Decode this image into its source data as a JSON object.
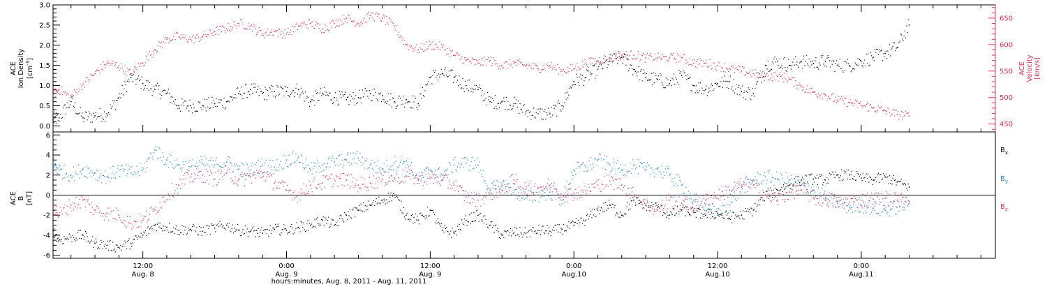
{
  "colors": {
    "black": "#000000",
    "density": "#000000",
    "velocity": "#e0305a",
    "bx": "#000000",
    "by": "#1f86d8",
    "bz": "#e0305a"
  },
  "panels": {
    "top": {
      "left_label": {
        "line1": "ACE",
        "line2": "Ion Density",
        "unit_base": "[cm",
        "unit_exp": "-3",
        "unit_end": "]"
      },
      "right_label": {
        "line1": "ACE",
        "line2": "Velocity",
        "line3": "[km/s]"
      }
    },
    "bottom": {
      "left_label": {
        "line1": "ACE",
        "sym": "B",
        "unit": "[nT]"
      },
      "legend": [
        {
          "base": "B",
          "sub": "x",
          "color": "#000000"
        },
        {
          "base": "B",
          "sub": "y",
          "color": "#1f86d8"
        },
        {
          "base": "B",
          "sub": "z",
          "color": "#e0305a"
        }
      ]
    }
  },
  "time_axis": {
    "title": "hours:minutes, Aug.  8, 2011 - Aug. 11, 2011",
    "labels": [
      {
        "t": 12,
        "time": "12:00",
        "date": "Aug. 8"
      },
      {
        "t": 24,
        "time": "0:00",
        "date": "Aug. 9"
      },
      {
        "t": 36,
        "time": "12:00",
        "date": "Aug. 9"
      },
      {
        "t": 48,
        "time": "0:00",
        "date": "Aug.10"
      },
      {
        "t": 60,
        "time": "12:00",
        "date": "Aug.10"
      },
      {
        "t": 72,
        "time": "0:00",
        "date": "Aug.11"
      }
    ]
  },
  "chart_data": [
    {
      "type": "scatter",
      "xlabel": "hours:minutes, Aug.  8, 2011 - Aug. 11, 2011",
      "ylabel": "ACE Ion Density [cm-3]",
      "ylabel_right": "ACE Velocity [km/s]",
      "xlim": [
        4.5,
        83.2
      ],
      "ylim": [
        -0.15,
        3.0
      ],
      "ylim_right": [
        435,
        675
      ],
      "yticks": [
        0.0,
        0.5,
        1.0,
        1.5,
        2.0,
        2.5,
        3.0
      ],
      "yticks_right": [
        450,
        500,
        550,
        600,
        650
      ],
      "grid": false,
      "series": [
        {
          "name": "Ion Density",
          "axis": "left",
          "color": "#000000",
          "x": [
            4.5,
            5,
            6,
            7,
            8,
            9,
            10,
            11,
            12,
            13,
            14,
            15,
            16,
            17,
            18,
            19,
            20,
            21,
            22,
            23,
            24,
            25,
            26,
            27,
            28,
            29,
            30,
            31,
            32,
            33,
            34,
            35,
            36,
            37,
            38,
            39,
            40,
            41,
            42,
            43,
            44,
            45,
            46,
            47,
            48,
            49,
            50,
            51,
            52,
            53,
            54,
            55,
            56,
            57,
            58,
            59,
            60,
            61,
            62,
            63,
            64,
            65,
            66,
            67,
            68,
            69,
            70,
            71,
            72,
            73,
            74,
            75,
            76
          ],
          "y": [
            0.15,
            0.2,
            0.6,
            0.2,
            0.25,
            0.3,
            0.7,
            1.2,
            1.05,
            0.9,
            0.8,
            0.5,
            0.5,
            0.5,
            0.55,
            0.6,
            0.8,
            0.9,
            0.8,
            0.85,
            0.85,
            0.9,
            0.6,
            0.8,
            0.7,
            0.65,
            0.7,
            0.8,
            0.75,
            0.6,
            0.65,
            0.55,
            1.2,
            1.3,
            1.2,
            1.0,
            0.9,
            0.6,
            0.6,
            0.55,
            0.35,
            0.3,
            0.3,
            0.5,
            1.1,
            1.2,
            1.4,
            1.6,
            1.7,
            1.4,
            1.2,
            1.15,
            1.05,
            1.25,
            1.0,
            0.9,
            1.05,
            1.1,
            0.85,
            0.8,
            1.5,
            1.6,
            1.5,
            1.6,
            1.55,
            1.6,
            1.5,
            1.5,
            1.6,
            1.7,
            1.8,
            1.95,
            2.5
          ]
        },
        {
          "name": "Velocity",
          "axis": "right",
          "color": "#e0305a",
          "x": [
            4.5,
            5,
            6,
            7,
            8,
            9,
            10,
            11,
            12,
            13,
            14,
            15,
            16,
            17,
            18,
            19,
            20,
            21,
            22,
            23,
            24,
            25,
            26,
            27,
            28,
            29,
            30,
            31,
            32,
            33,
            34,
            35,
            36,
            37,
            38,
            39,
            40,
            41,
            42,
            43,
            44,
            45,
            46,
            47,
            48,
            49,
            50,
            51,
            52,
            53,
            54,
            55,
            56,
            57,
            58,
            59,
            60,
            61,
            62,
            63,
            64,
            65,
            66,
            67,
            68,
            69,
            70,
            71,
            72,
            73,
            74,
            75,
            76
          ],
          "y": [
            505,
            515,
            500,
            525,
            545,
            565,
            560,
            545,
            565,
            590,
            610,
            615,
            610,
            615,
            625,
            630,
            640,
            635,
            620,
            625,
            620,
            635,
            640,
            630,
            640,
            650,
            640,
            655,
            650,
            635,
            600,
            590,
            600,
            595,
            580,
            570,
            565,
            570,
            560,
            565,
            560,
            555,
            560,
            550,
            555,
            565,
            570,
            575,
            580,
            580,
            575,
            575,
            575,
            575,
            565,
            565,
            560,
            555,
            550,
            545,
            540,
            540,
            535,
            520,
            510,
            505,
            495,
            490,
            485,
            480,
            475,
            468,
            465
          ]
        }
      ]
    },
    {
      "type": "scatter",
      "ylabel": "ACE B [nT]",
      "xlim": [
        4.5,
        83.2
      ],
      "ylim": [
        -6.3,
        6.3
      ],
      "yticks": [
        -6,
        -4,
        -2,
        0,
        2,
        4,
        6
      ],
      "zero_line": true,
      "grid": false,
      "legend": "right",
      "series": [
        {
          "name": "Bx",
          "color": "#000000",
          "x": [
            4.5,
            5,
            6,
            7,
            8,
            9,
            10,
            11,
            12,
            13,
            14,
            15,
            16,
            17,
            18,
            19,
            20,
            21,
            22,
            23,
            24,
            25,
            26,
            27,
            28,
            29,
            30,
            31,
            32,
            33,
            34,
            35,
            36,
            37,
            38,
            39,
            40,
            41,
            42,
            43,
            44,
            45,
            46,
            47,
            48,
            49,
            50,
            51,
            52,
            53,
            54,
            55,
            56,
            57,
            58,
            59,
            60,
            61,
            62,
            63,
            64,
            65,
            66,
            67,
            68,
            69,
            70,
            71,
            72,
            73,
            74,
            75,
            76
          ],
          "y": [
            -3.5,
            -4.5,
            -4.2,
            -4.0,
            -4.8,
            -5.0,
            -5.2,
            -4.8,
            -4.0,
            -3.0,
            -3.2,
            -3.5,
            -3.4,
            -3.6,
            -3.3,
            -3.0,
            -3.5,
            -3.6,
            -3.8,
            -3.4,
            -3.5,
            -3.2,
            -3.0,
            -2.5,
            -3.0,
            -2.0,
            -1.5,
            -1.0,
            -0.5,
            0.0,
            -2.0,
            -2.5,
            -1.5,
            -3.5,
            -3.8,
            -2.5,
            -2.0,
            -3.0,
            -4.0,
            -3.7,
            -3.8,
            -3.5,
            -3.6,
            -3.4,
            -3.0,
            -2.5,
            -1.5,
            -1.0,
            -2.0,
            -0.5,
            -1.0,
            -1.2,
            -2.0,
            -1.5,
            -1.7,
            -2.0,
            -1.8,
            -2.3,
            -2.0,
            -1.5,
            0.0,
            0.5,
            1.0,
            1.5,
            1.6,
            1.5,
            2.0,
            2.0,
            1.7,
            1.5,
            1.8,
            1.3,
            0.8
          ]
        },
        {
          "name": "By",
          "color": "#1f86d8",
          "x": [
            4.5,
            5,
            6,
            7,
            8,
            9,
            10,
            11,
            12,
            13,
            14,
            15,
            16,
            17,
            18,
            19,
            20,
            21,
            22,
            23,
            24,
            25,
            26,
            27,
            28,
            29,
            30,
            31,
            32,
            33,
            34,
            35,
            36,
            37,
            38,
            39,
            40,
            41,
            42,
            43,
            44,
            45,
            46,
            47,
            48,
            49,
            50,
            51,
            52,
            53,
            54,
            55,
            56,
            57,
            58,
            59,
            60,
            61,
            62,
            63,
            64,
            65,
            66,
            67,
            68,
            69,
            70,
            71,
            72,
            73,
            74,
            75,
            76
          ],
          "y": [
            3.2,
            2.5,
            2.0,
            2.6,
            2.2,
            1.8,
            2.5,
            2.2,
            2.5,
            4.5,
            3.5,
            3.0,
            2.8,
            3.2,
            3.0,
            3.3,
            2.6,
            2.5,
            3.0,
            2.8,
            3.5,
            3.8,
            2.5,
            3.0,
            3.3,
            3.5,
            3.7,
            3.0,
            2.6,
            3.2,
            3.4,
            1.5,
            2.5,
            2.0,
            3.0,
            3.2,
            3.0,
            0.5,
            1.0,
            0.5,
            -0.3,
            0.0,
            0.3,
            -0.5,
            2.5,
            2.8,
            3.5,
            3.0,
            2.5,
            3.0,
            2.5,
            2.6,
            2.0,
            1.0,
            -0.5,
            -1.0,
            -2.0,
            -1.0,
            0.8,
            1.5,
            1.8,
            1.6,
            1.5,
            1.0,
            0.5,
            -0.3,
            -0.8,
            -1.2,
            -1.0,
            -1.3,
            -1.5,
            -1.2,
            -0.8
          ]
        },
        {
          "name": "Bz",
          "color": "#e0305a",
          "x": [
            4.5,
            5,
            6,
            7,
            8,
            9,
            10,
            11,
            12,
            13,
            14,
            15,
            16,
            17,
            18,
            19,
            20,
            21,
            22,
            23,
            24,
            25,
            26,
            27,
            28,
            29,
            30,
            31,
            32,
            33,
            34,
            35,
            36,
            37,
            38,
            39,
            40,
            41,
            42,
            43,
            44,
            45,
            46,
            47,
            48,
            49,
            50,
            51,
            52,
            53,
            54,
            55,
            56,
            57,
            58,
            59,
            60,
            61,
            62,
            63,
            64,
            65,
            66,
            67,
            68,
            69,
            70,
            71,
            72,
            73,
            74,
            75,
            76
          ],
          "y": [
            -1.0,
            -2.0,
            -1.0,
            -0.5,
            -1.5,
            -1.8,
            -2.0,
            -2.8,
            -2.5,
            -1.5,
            0.0,
            1.0,
            1.8,
            2.0,
            1.6,
            2.2,
            1.5,
            1.8,
            2.2,
            1.2,
            0.5,
            0.0,
            1.0,
            1.2,
            1.6,
            1.5,
            1.0,
            1.2,
            1.6,
            1.7,
            1.9,
            1.6,
            1.8,
            1.5,
            1.0,
            -0.2,
            -0.5,
            0.2,
            0.5,
            1.5,
            0.6,
            0.7,
            1.0,
            0.0,
            0.2,
            0.5,
            1.0,
            1.4,
            1.0,
            0.0,
            -1.0,
            -1.5,
            -0.5,
            -0.8,
            -1.5,
            -0.5,
            0.0,
            0.5,
            1.0,
            1.0,
            0.0,
            -0.5,
            0.3,
            0.5,
            -0.3,
            -0.5,
            -0.6,
            -0.7,
            -0.5,
            -0.4,
            -0.3,
            -0.5,
            -0.6
          ]
        }
      ]
    }
  ]
}
